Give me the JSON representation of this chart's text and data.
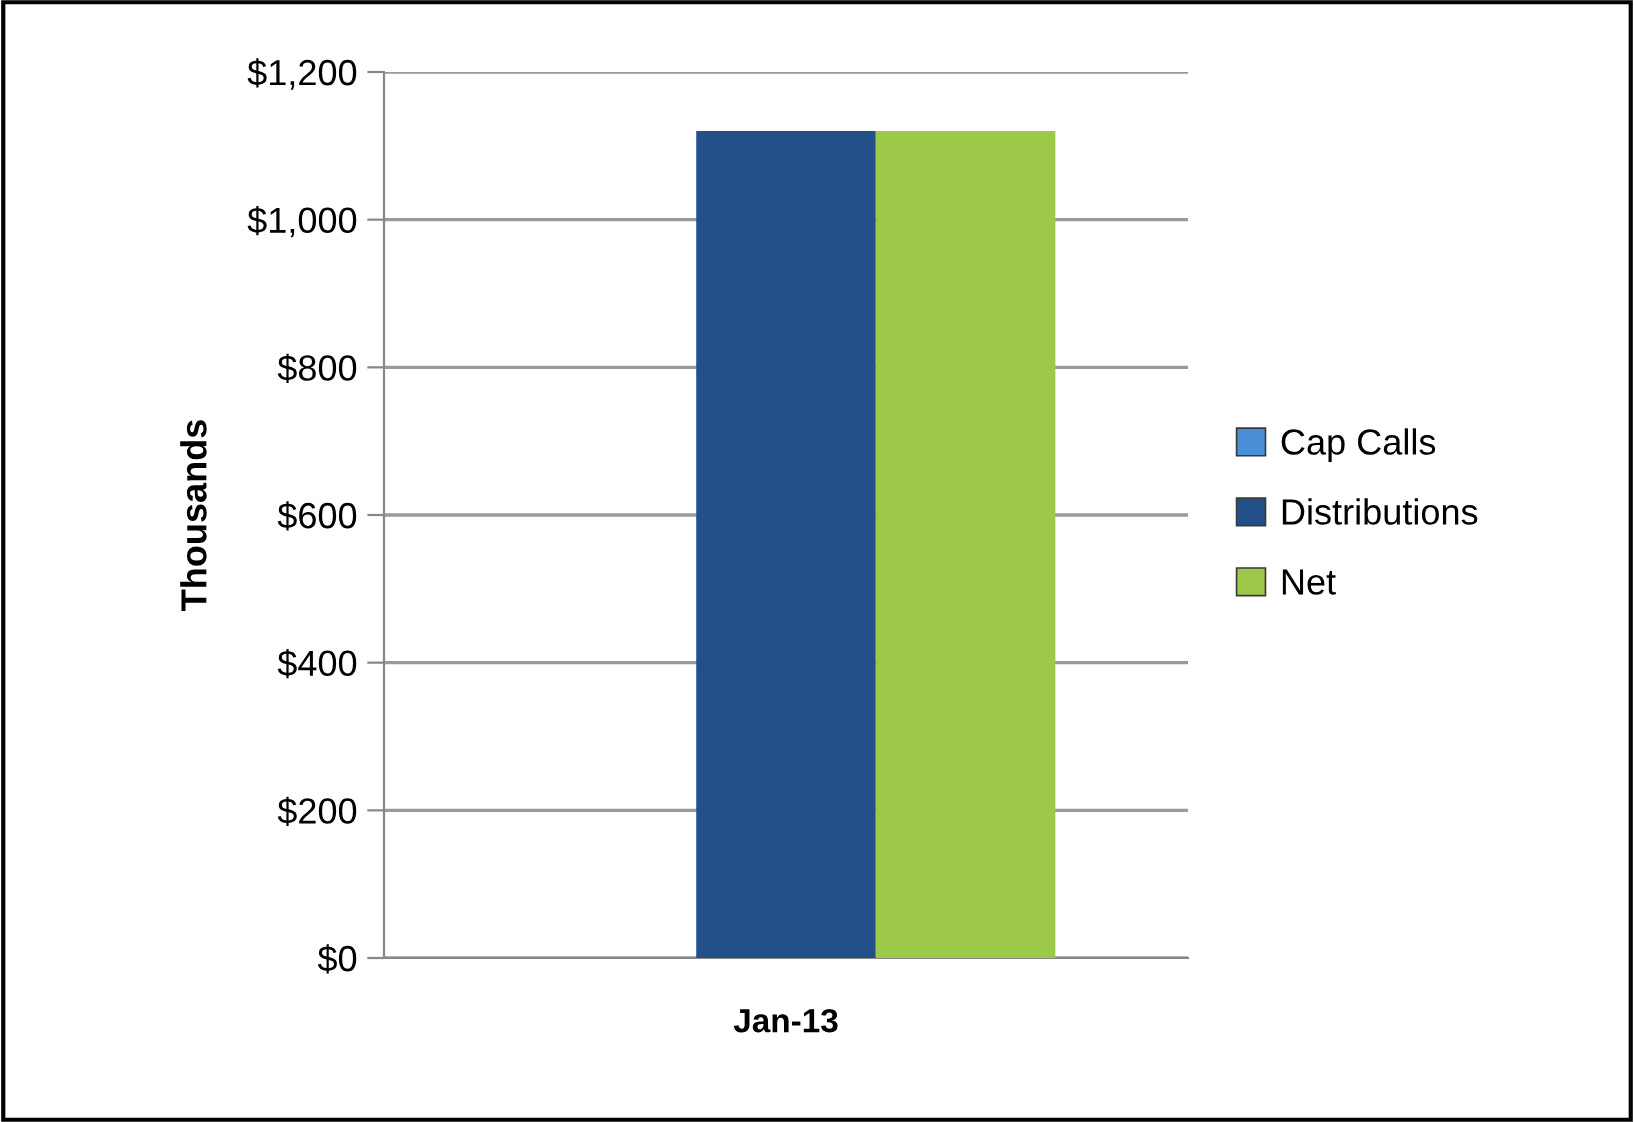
{
  "chart_data": {
    "type": "bar",
    "ylabel": "Thousands",
    "categories": [
      "Jan-13"
    ],
    "series": [
      {
        "name": "Cap Calls",
        "color": "#4a90d9",
        "values": [
          0
        ]
      },
      {
        "name": "Distributions",
        "color": "#24508a",
        "values": [
          1120
        ]
      },
      {
        "name": "Net",
        "color": "#9dc94a",
        "values": [
          1120
        ]
      }
    ],
    "ylim": [
      0,
      1200
    ],
    "yticks": [
      {
        "value": 0,
        "label": "$0"
      },
      {
        "value": 200,
        "label": "$200"
      },
      {
        "value": 400,
        "label": "$400"
      },
      {
        "value": 600,
        "label": "$600"
      },
      {
        "value": 800,
        "label": "$800"
      },
      {
        "value": 1000,
        "label": "$1,000"
      },
      {
        "value": 1200,
        "label": "$1,200"
      }
    ],
    "grid": "y",
    "legend": "right"
  }
}
